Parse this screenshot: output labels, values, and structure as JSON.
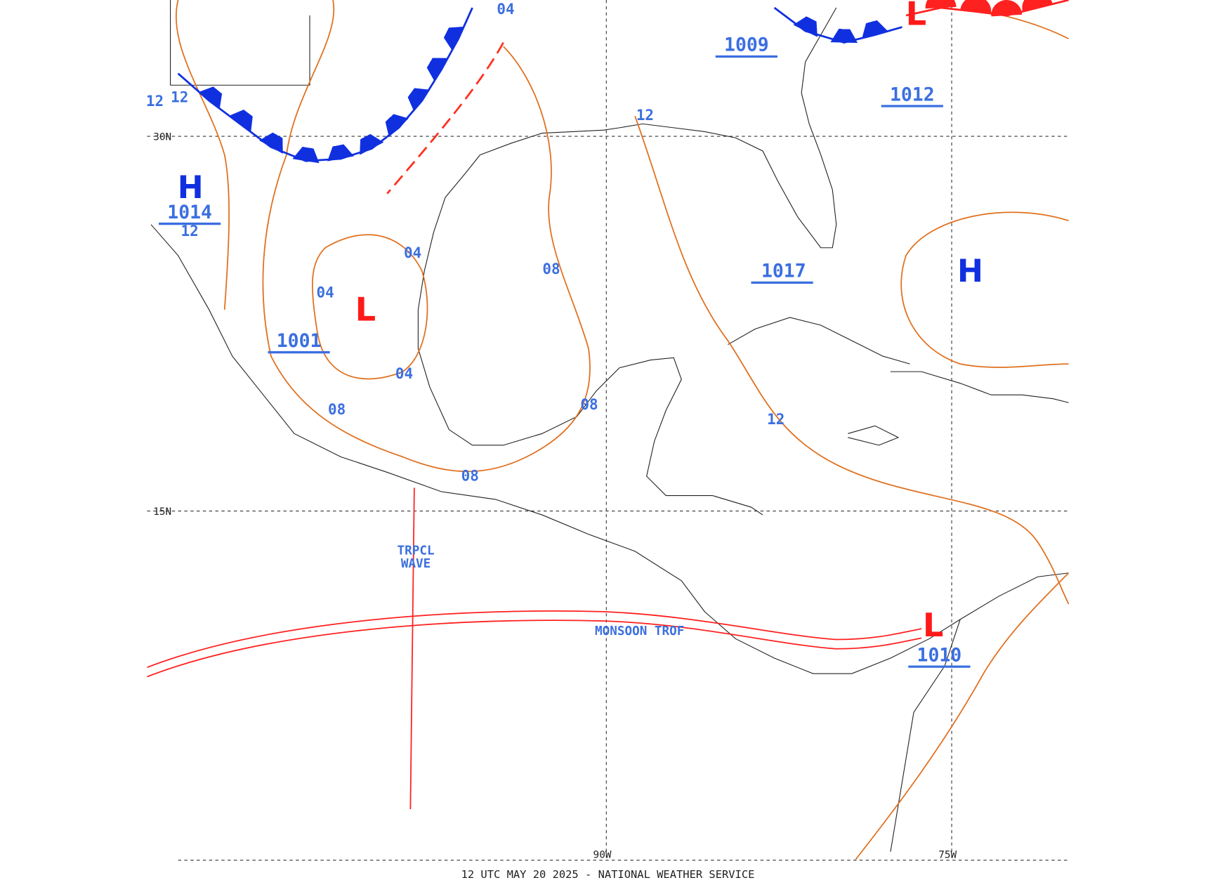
{
  "map": {
    "footer": "12 UTC MAY 20 2025 - NATIONAL WEATHER SERVICE",
    "grid_labels": {
      "lat_30": "30N",
      "lat_15": "15N",
      "lon_90": "90W",
      "lon_75": "75W"
    },
    "highs": [
      {
        "symbol": "H",
        "pressure": "1014",
        "sub": "12"
      },
      {
        "symbol": "H"
      }
    ],
    "lows": [
      {
        "symbol": "L",
        "pressure": "1001"
      },
      {
        "symbol": "L",
        "pressure": "1010"
      },
      {
        "symbol": "L"
      }
    ],
    "pressure_labels": [
      "1009",
      "1012",
      "1017"
    ],
    "isobar_labels": [
      "12",
      "12",
      "12",
      "12",
      "04",
      "04",
      "04",
      "04",
      "08",
      "08",
      "08",
      "08"
    ],
    "features": {
      "wave_1": "TRPCL",
      "wave_2": "WAVE",
      "trough": "MONSOON TROF"
    }
  }
}
